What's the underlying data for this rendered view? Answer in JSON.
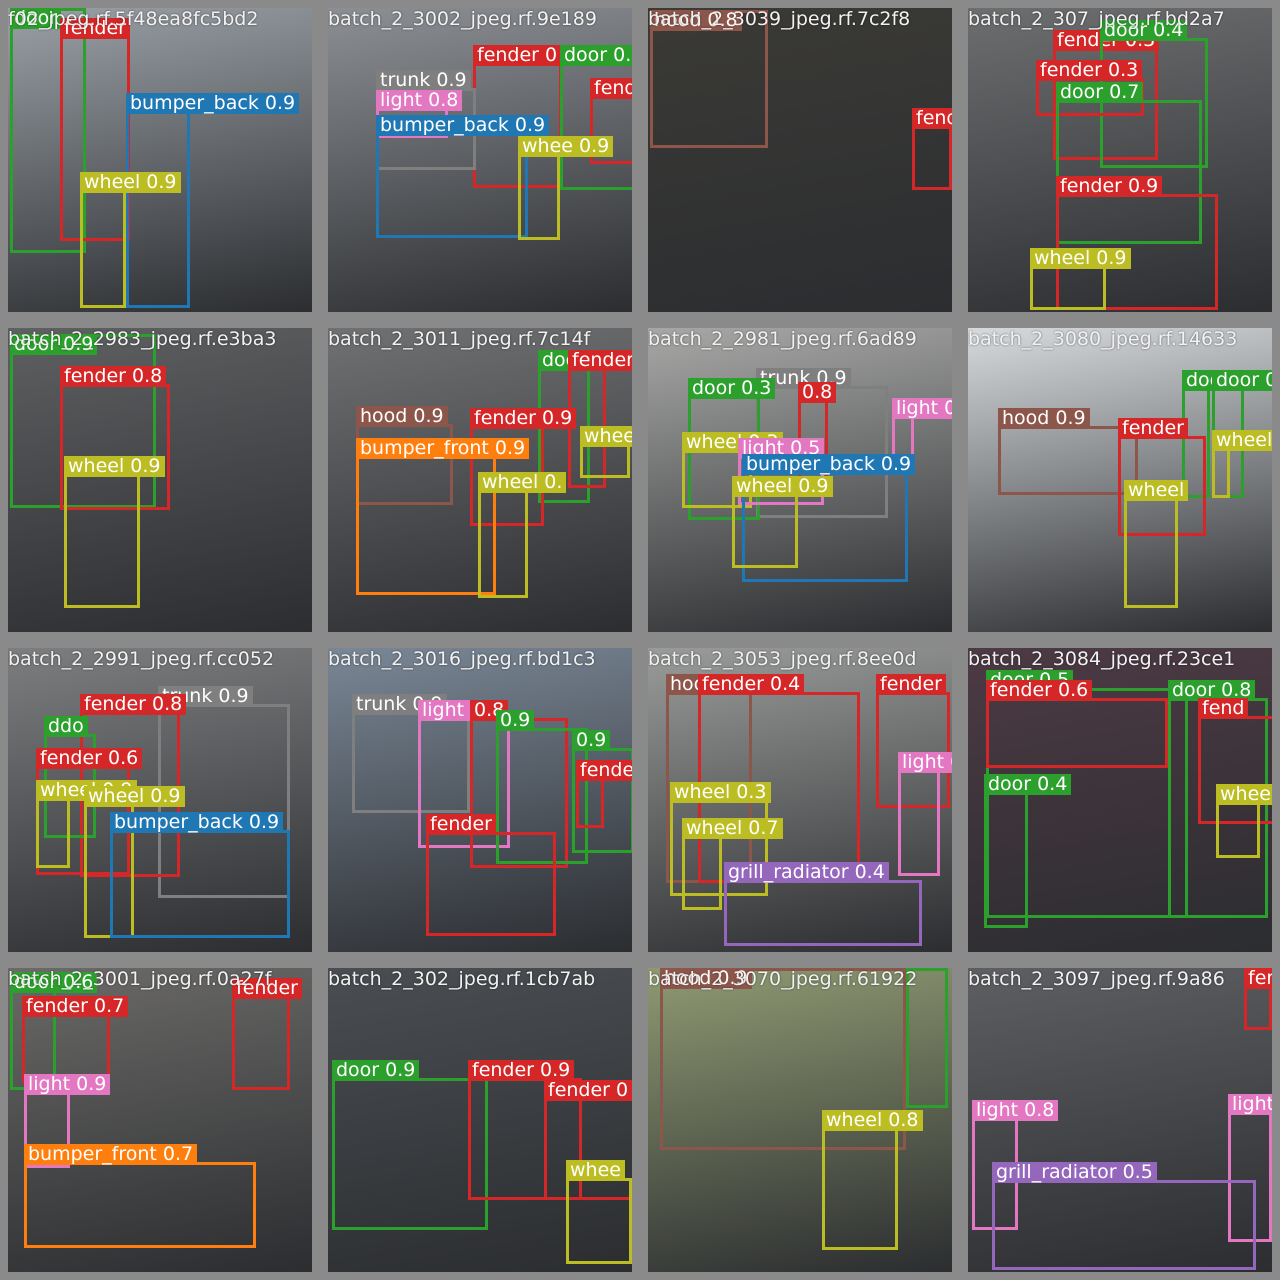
{
  "palette": {
    "fender": "#d62728",
    "door": "#2ca02c",
    "wheel": "#bcbd22",
    "bumper_back": "#1f77b4",
    "bumper_front": "#ff7f0e",
    "light": "#e377c2",
    "trunk": "#7f7f7f",
    "hood": "#8c564b",
    "grill_radiator": "#9467bd"
  },
  "tiles": [
    {
      "filename": "f02_jpeg.rf.5f48ea8fc5bd2",
      "bg": "#9aa0a6",
      "detections": [
        {
          "label": "door",
          "score": "",
          "cls": "door"
        },
        {
          "label": "fender",
          "score": "",
          "cls": "fender"
        },
        {
          "label": "bumper_back",
          "score": "0.9",
          "cls": "bumper_back"
        },
        {
          "label": "wheel",
          "score": "0.9",
          "cls": "wheel"
        }
      ]
    },
    {
      "filename": "batch_2_3002_jpeg.rf.9e189",
      "bg": "#8c8f94",
      "detections": [
        {
          "label": "fender",
          "score": "0",
          "cls": "fender"
        },
        {
          "label": "door",
          "score": "0.",
          "cls": "door"
        },
        {
          "label": "trunk",
          "score": "0.9",
          "cls": "trunk"
        },
        {
          "label": "light",
          "score": "0.8",
          "cls": "light"
        },
        {
          "label": "bumper_back",
          "score": "0.9",
          "cls": "bumper_back"
        },
        {
          "label": "fende",
          "score": "",
          "cls": "fender"
        },
        {
          "label": "whee",
          "score": "0.9",
          "cls": "wheel"
        }
      ]
    },
    {
      "filename": "batch_2_3039_jpeg.rf.7c2f8",
      "bg": "#3b3a36",
      "detections": [
        {
          "label": "hood",
          "score": "0.8",
          "cls": "hood"
        },
        {
          "label": "fend",
          "score": "",
          "cls": "fender"
        }
      ]
    },
    {
      "filename": "batch_2_307_jpeg.rf.bd2a7",
      "bg": "#6c6e70",
      "detections": [
        {
          "label": "fender",
          "score": "0.3",
          "cls": "fender"
        },
        {
          "label": "door",
          "score": "0.4",
          "cls": "door"
        },
        {
          "label": "fender",
          "score": "0.3",
          "cls": "fender"
        },
        {
          "label": "door",
          "score": "0.7",
          "cls": "door"
        },
        {
          "label": "fender",
          "score": "0.9",
          "cls": "fender"
        },
        {
          "label": "wheel",
          "score": "0.9",
          "cls": "wheel"
        }
      ]
    },
    {
      "filename": "batch_2_2983_jpeg.rf.e3ba3",
      "bg": "#5e6062",
      "detections": [
        {
          "label": "door",
          "score": "0.9",
          "cls": "door"
        },
        {
          "label": "fender",
          "score": "0.8",
          "cls": "fender"
        },
        {
          "label": "wheel",
          "score": "0.9",
          "cls": "wheel"
        }
      ]
    },
    {
      "filename": "batch_2_3011_jpeg.rf.7c14f",
      "bg": "#6f7173",
      "detections": [
        {
          "label": "door",
          "score": "",
          "cls": "door"
        },
        {
          "label": "fender",
          "score": "",
          "cls": "fender"
        },
        {
          "label": "hood",
          "score": "0.9",
          "cls": "hood"
        },
        {
          "label": "fender",
          "score": "0.9",
          "cls": "fender"
        },
        {
          "label": "bumper_front",
          "score": "0.9",
          "cls": "bumper_front"
        },
        {
          "label": "whee",
          "score": "",
          "cls": "wheel"
        },
        {
          "label": "wheel",
          "score": "0.",
          "cls": "wheel"
        }
      ]
    },
    {
      "filename": "batch_2_2981_jpeg.rf.6ad89",
      "bg": "#a7a8a6",
      "detections": [
        {
          "label": "trunk",
          "score": "0.9",
          "cls": "trunk"
        },
        {
          "label": "door",
          "score": "0.3",
          "cls": "door"
        },
        {
          "label": "",
          "score": "0.8",
          "cls": "fender"
        },
        {
          "label": "light",
          "score": "0",
          "cls": "light"
        },
        {
          "label": "wheel",
          "score": "0.3",
          "cls": "wheel"
        },
        {
          "label": "light",
          "score": "0.5",
          "cls": "light"
        },
        {
          "label": "bumper_back",
          "score": "0.9",
          "cls": "bumper_back"
        },
        {
          "label": "wheel",
          "score": "0.9",
          "cls": "wheel"
        }
      ]
    },
    {
      "filename": "batch_2_3080_jpeg.rf.14633",
      "bg": "#d7dadd",
      "detections": [
        {
          "label": "door",
          "score": "",
          "cls": "door"
        },
        {
          "label": "door",
          "score": "0",
          "cls": "door"
        },
        {
          "label": "hood",
          "score": "0.9",
          "cls": "hood"
        },
        {
          "label": "fender",
          "score": "",
          "cls": "fender"
        },
        {
          "label": "wheel",
          "score": "",
          "cls": "wheel"
        },
        {
          "label": "wheel",
          "score": "",
          "cls": "wheel"
        }
      ]
    },
    {
      "filename": "batch_2_2991_jpeg.rf.cc052",
      "bg": "#7c7e80",
      "detections": [
        {
          "label": "trunk",
          "score": "0.9",
          "cls": "trunk"
        },
        {
          "label": "fender",
          "score": "0.8",
          "cls": "fender"
        },
        {
          "label": "ddo",
          "score": "",
          "cls": "door"
        },
        {
          "label": "fender",
          "score": "0.6",
          "cls": "fender"
        },
        {
          "label": "wheel",
          "score": "0.9",
          "cls": "wheel"
        },
        {
          "label": "wheel",
          "score": "0.9",
          "cls": "wheel"
        },
        {
          "label": "bumper_back",
          "score": "0.9",
          "cls": "bumper_back"
        }
      ]
    },
    {
      "filename": "batch_2_3016_jpeg.rf.bd1c3",
      "bg": "#7a8796",
      "detections": [
        {
          "label": "trunk",
          "score": "0.9",
          "cls": "trunk"
        },
        {
          "label": "light",
          "score": "0.6",
          "cls": "light"
        },
        {
          "label": "",
          "score": "0.8",
          "cls": "fender"
        },
        {
          "label": "",
          "score": "0.9",
          "cls": "door"
        },
        {
          "label": "",
          "score": "0.9",
          "cls": "door"
        },
        {
          "label": "fende",
          "score": "",
          "cls": "fender"
        },
        {
          "label": "fender",
          "score": "",
          "cls": "fender"
        },
        {
          "label": "wheel",
          "score": "0.9",
          "cls": "wheel"
        }
      ]
    },
    {
      "filename": "batch_2_3053_jpeg.rf.8ee0d",
      "bg": "#9a9c9a",
      "detections": [
        {
          "label": "hoo",
          "score": "",
          "cls": "hood"
        },
        {
          "label": "fender",
          "score": "0.4",
          "cls": "fender"
        },
        {
          "label": "fender",
          "score": "",
          "cls": "fender"
        },
        {
          "label": "light",
          "score": "0",
          "cls": "light"
        },
        {
          "label": "wheel",
          "score": "0.3",
          "cls": "wheel"
        },
        {
          "label": "wheel",
          "score": "0.7",
          "cls": "wheel"
        },
        {
          "label": "grill_radiator",
          "score": "0.4",
          "cls": "grill_radiator"
        }
      ]
    },
    {
      "filename": "batch_2_3084_jpeg.rf.23ce1",
      "bg": "#4d3a44",
      "detections": [
        {
          "label": "door",
          "score": "0.5",
          "cls": "door"
        },
        {
          "label": "fender",
          "score": "0.6",
          "cls": "fender"
        },
        {
          "label": "door",
          "score": "0.8",
          "cls": "door"
        },
        {
          "label": "fend",
          "score": "",
          "cls": "fender"
        },
        {
          "label": "door",
          "score": "0.4",
          "cls": "door"
        },
        {
          "label": "wheel",
          "score": "",
          "cls": "wheel"
        }
      ]
    },
    {
      "filename": "batch_2_3001_jpeg.rf.0a27f",
      "bg": "#6b6a68",
      "detections": [
        {
          "label": "door",
          "score": "0.6",
          "cls": "door"
        },
        {
          "label": "fender",
          "score": "0.7",
          "cls": "fender"
        },
        {
          "label": "fender",
          "score": "",
          "cls": "fender"
        },
        {
          "label": "light",
          "score": "0.9",
          "cls": "light"
        },
        {
          "label": "bumper_front",
          "score": "0.7",
          "cls": "bumper_front"
        }
      ]
    },
    {
      "filename": "batch_2_302_jpeg.rf.1cb7ab",
      "bg": "#4a4e52",
      "detections": [
        {
          "label": "door",
          "score": "0.9",
          "cls": "door"
        },
        {
          "label": "fender",
          "score": "0.9",
          "cls": "fender"
        },
        {
          "label": "fender",
          "score": "0",
          "cls": "fender"
        },
        {
          "label": "whee",
          "score": "",
          "cls": "wheel"
        }
      ]
    },
    {
      "filename": "batch_2_3070_jpeg.rf.61922",
      "bg": "#8f9a72",
      "detections": [
        {
          "label": "hood",
          "score": "0.9",
          "cls": "hood"
        },
        {
          "label": "wheel",
          "score": "0.8",
          "cls": "wheel"
        },
        {
          "label": "",
          "score": "",
          "cls": "door"
        }
      ]
    },
    {
      "filename": "batch_2_3097_jpeg.rf.9a86",
      "bg": "#5d5f62",
      "detections": [
        {
          "label": "fen",
          "score": "",
          "cls": "fender"
        },
        {
          "label": "light",
          "score": "0.8",
          "cls": "light"
        },
        {
          "label": "light",
          "score": "",
          "cls": "light"
        },
        {
          "label": "grill_radiator",
          "score": "0.5",
          "cls": "grill_radiator"
        }
      ]
    }
  ]
}
